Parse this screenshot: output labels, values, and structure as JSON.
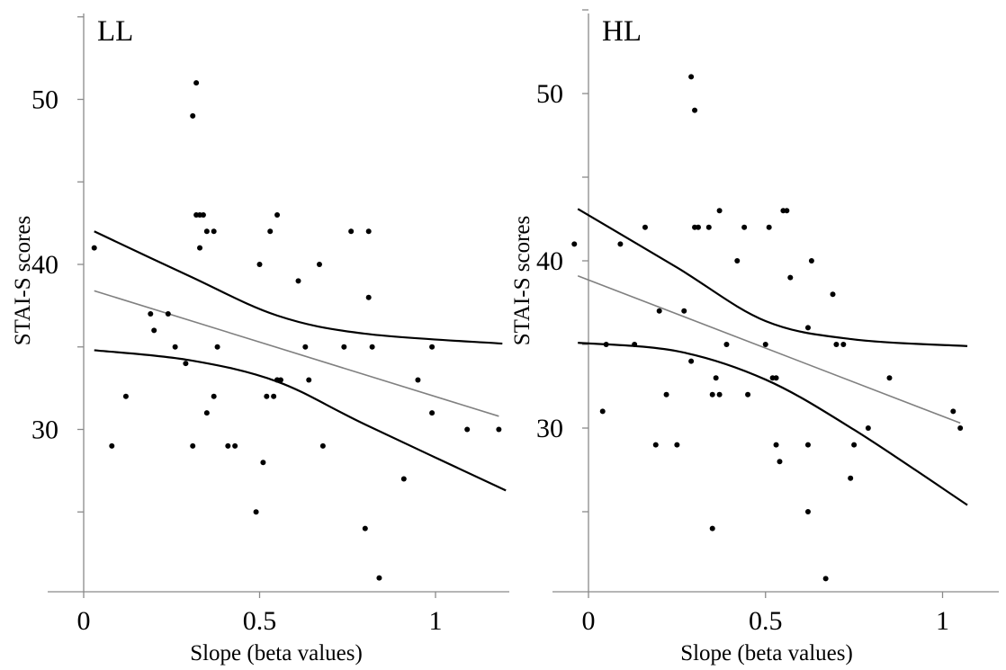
{
  "chart_data": [
    {
      "type": "scatter",
      "title": "LL",
      "xlabel": "Slope (beta values)",
      "ylabel": "STAI-S scores",
      "xticks": [
        "0",
        "0.5",
        "1"
      ],
      "yticks": [
        "30",
        "40",
        "50"
      ],
      "xlim": [
        -0.1,
        1.2
      ],
      "ylim": [
        20,
        55
      ],
      "grid": false,
      "points": {
        "x": [
          0.03,
          0.08,
          0.12,
          0.19,
          0.2,
          0.24,
          0.26,
          0.29,
          0.31,
          0.31,
          0.32,
          0.32,
          0.33,
          0.33,
          0.34,
          0.35,
          0.35,
          0.37,
          0.37,
          0.38,
          0.41,
          0.43,
          0.49,
          0.5,
          0.51,
          0.52,
          0.53,
          0.54,
          0.55,
          0.55,
          0.55,
          0.56,
          0.61,
          0.63,
          0.64,
          0.67,
          0.68,
          0.74,
          0.76,
          0.8,
          0.81,
          0.81,
          0.82,
          0.84,
          0.91,
          0.95,
          0.99,
          0.99,
          1.09,
          1.18
        ],
        "y": [
          41,
          29,
          32,
          37,
          36,
          37,
          35,
          34,
          29,
          49,
          51,
          43,
          43,
          41,
          43,
          42,
          31,
          42,
          32,
          35,
          29,
          29,
          25,
          40,
          28,
          32,
          42,
          32,
          43,
          33,
          33,
          33,
          39,
          35,
          33,
          40,
          29,
          35,
          42,
          24,
          42,
          38,
          35,
          21,
          27,
          33,
          31,
          35,
          30,
          30
        ]
      },
      "fit_line": {
        "x": [
          0.03,
          1.18
        ],
        "y": [
          38.4,
          30.8
        ]
      },
      "ci_upper": {
        "x": [
          0.03,
          0.3,
          0.55,
          0.8,
          1.19
        ],
        "y": [
          42.0,
          39.3,
          36.9,
          35.8,
          35.2
        ]
      },
      "ci_lower": {
        "x": [
          0.03,
          0.3,
          0.55,
          0.8,
          1.2
        ],
        "y": [
          34.8,
          34.2,
          32.9,
          30.3,
          26.3
        ]
      }
    },
    {
      "type": "scatter",
      "title": "HL",
      "xlabel": "Slope (beta values)",
      "ylabel": "STAI-S scores",
      "xticks": [
        "0",
        "0.5",
        "1"
      ],
      "yticks": [
        "30",
        "40",
        "50"
      ],
      "xlim": [
        -0.05,
        1.1
      ],
      "ylim": [
        20,
        55
      ],
      "grid": false,
      "points": {
        "x": [
          -0.04,
          0.04,
          0.05,
          0.09,
          0.13,
          0.16,
          0.19,
          0.2,
          0.22,
          0.25,
          0.27,
          0.29,
          0.29,
          0.3,
          0.3,
          0.31,
          0.34,
          0.35,
          0.35,
          0.36,
          0.37,
          0.37,
          0.39,
          0.42,
          0.44,
          0.45,
          0.5,
          0.51,
          0.52,
          0.53,
          0.53,
          0.54,
          0.55,
          0.56,
          0.57,
          0.62,
          0.62,
          0.62,
          0.63,
          0.67,
          0.69,
          0.7,
          0.72,
          0.74,
          0.75,
          0.79,
          0.85,
          1.03,
          1.05
        ],
        "y": [
          41,
          31,
          35,
          41,
          35,
          42,
          29,
          37,
          32,
          29,
          37,
          51,
          34,
          42,
          49,
          42,
          42,
          32,
          24,
          33,
          43,
          32,
          35,
          40,
          42,
          32,
          35,
          42,
          33,
          33,
          29,
          28,
          43,
          43,
          39,
          36,
          29,
          25,
          40,
          21,
          38,
          35,
          35,
          27,
          29,
          30,
          33,
          31,
          30
        ]
      },
      "fit_line": {
        "x": [
          -0.03,
          1.05
        ],
        "y": [
          39.1,
          30.3
        ]
      },
      "ci_upper": {
        "x": [
          -0.03,
          0.25,
          0.5,
          0.75,
          1.07
        ],
        "y": [
          43.1,
          39.6,
          36.4,
          35.3,
          34.9
        ]
      },
      "ci_lower": {
        "x": [
          -0.03,
          0.25,
          0.5,
          0.75,
          1.07
        ],
        "y": [
          35.1,
          34.6,
          32.9,
          29.9,
          25.4
        ]
      }
    }
  ]
}
